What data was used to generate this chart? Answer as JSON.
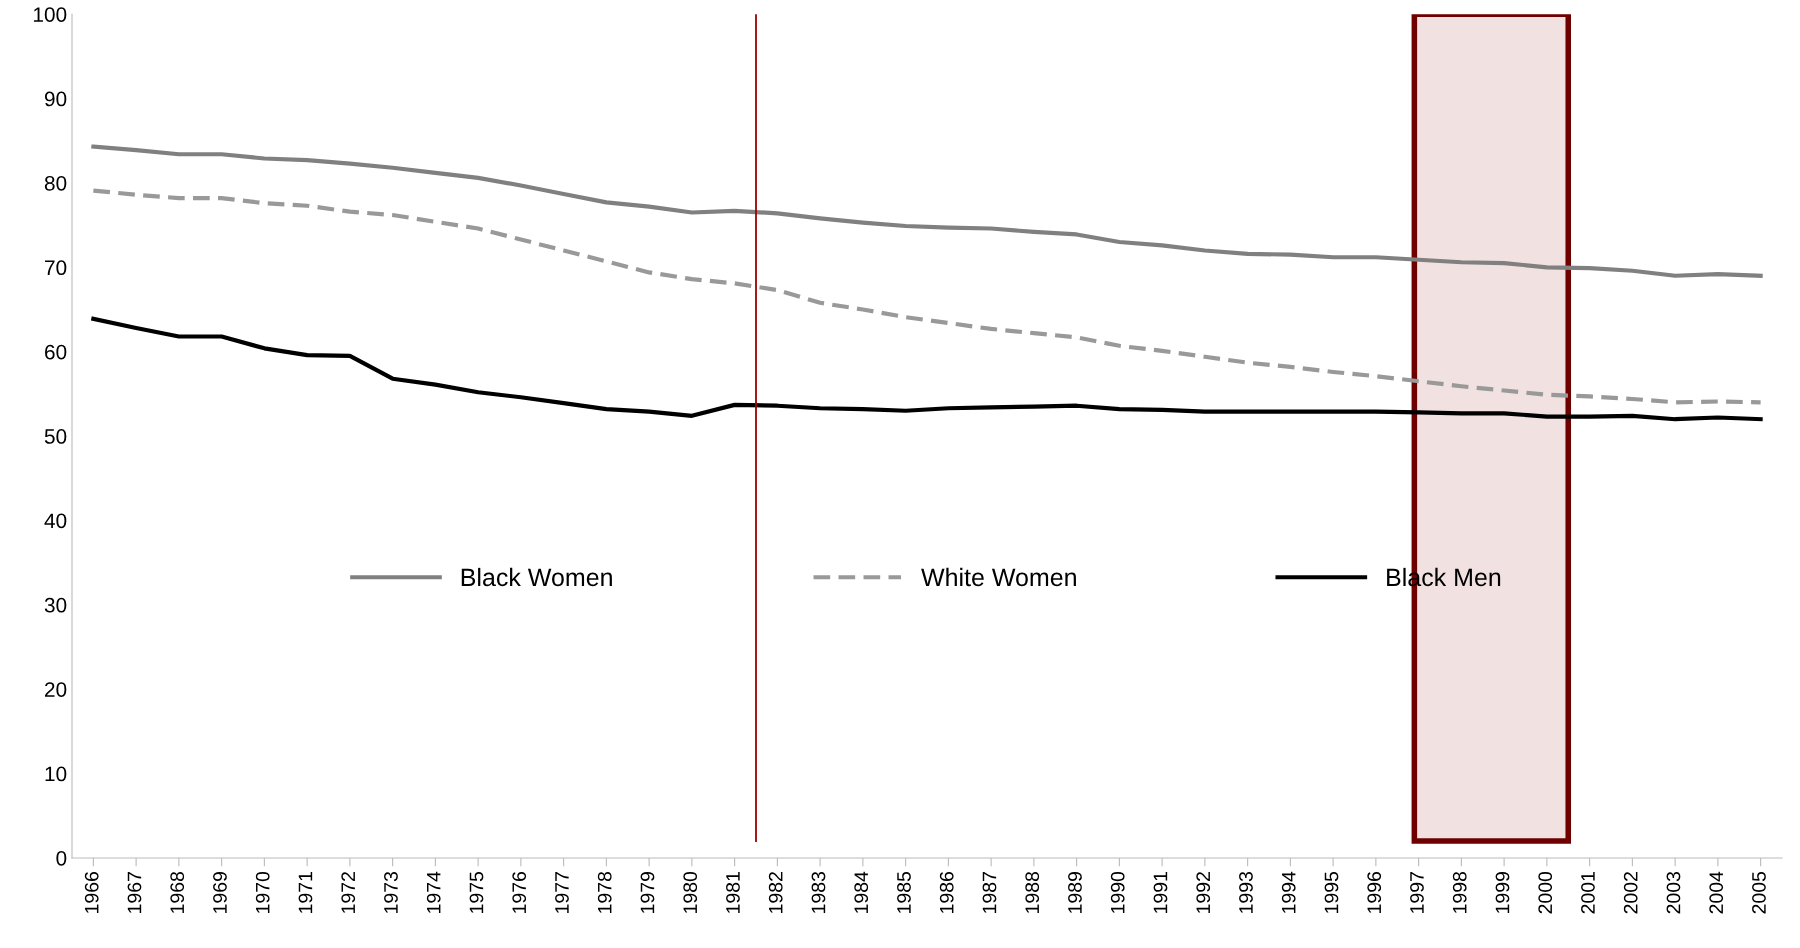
{
  "chart_data": {
    "type": "line",
    "x": [
      1966,
      1967,
      1968,
      1969,
      1970,
      1971,
      1972,
      1973,
      1974,
      1975,
      1976,
      1977,
      1978,
      1979,
      1980,
      1981,
      1982,
      1983,
      1984,
      1985,
      1986,
      1987,
      1988,
      1989,
      1990,
      1991,
      1992,
      1993,
      1994,
      1995,
      1996,
      1997,
      1998,
      1999,
      2000,
      2001,
      2002,
      2003,
      2004,
      2005
    ],
    "series": [
      {
        "name": "Black Women",
        "color": "#808080",
        "line_style": "solid",
        "values": [
          84.3,
          83.9,
          83.4,
          83.4,
          82.9,
          82.7,
          82.3,
          81.8,
          81.2,
          80.6,
          79.7,
          78.7,
          77.7,
          77.2,
          76.5,
          76.7,
          76.4,
          75.8,
          75.3,
          74.9,
          74.7,
          74.6,
          74.2,
          73.9,
          73.0,
          72.6,
          72.0,
          71.6,
          71.5,
          71.2,
          71.2,
          70.9,
          70.6,
          70.5,
          70.0,
          69.9,
          69.6,
          69.0,
          69.2,
          69.0
        ]
      },
      {
        "name": "White Women",
        "color": "#999999",
        "line_style": "dashed",
        "values": [
          79.1,
          78.6,
          78.2,
          78.2,
          77.6,
          77.3,
          76.6,
          76.2,
          75.4,
          74.6,
          73.3,
          72.0,
          70.7,
          69.4,
          68.6,
          68.1,
          67.3,
          65.8,
          65.0,
          64.1,
          63.4,
          62.7,
          62.2,
          61.7,
          60.7,
          60.1,
          59.4,
          58.7,
          58.2,
          57.6,
          57.1,
          56.5,
          55.9,
          55.4,
          54.9,
          54.7,
          54.4,
          54.0,
          54.1,
          54.0
        ]
      },
      {
        "name": "Black Men",
        "color": "#000000",
        "line_style": "solid",
        "values": [
          63.9,
          62.8,
          61.8,
          61.8,
          60.4,
          59.6,
          59.5,
          56.8,
          56.1,
          55.2,
          54.6,
          53.9,
          53.2,
          52.9,
          52.4,
          53.7,
          53.6,
          53.3,
          53.2,
          53.0,
          53.3,
          53.4,
          53.5,
          53.6,
          53.2,
          53.1,
          52.9,
          52.9,
          52.9,
          52.9,
          52.9,
          52.8,
          52.7,
          52.7,
          52.3,
          52.3,
          52.4,
          52.0,
          52.2,
          52.0
        ]
      }
    ],
    "xlim": [
      1965.5,
      2005.5
    ],
    "xticks": [
      1966,
      1967,
      1968,
      1969,
      1970,
      1971,
      1972,
      1973,
      1974,
      1975,
      1976,
      1977,
      1978,
      1979,
      1980,
      1981,
      1982,
      1983,
      1984,
      1985,
      1986,
      1987,
      1988,
      1989,
      1990,
      1991,
      1992,
      1993,
      1994,
      1995,
      1996,
      1997,
      1998,
      1999,
      2000,
      2001,
      2002,
      2003,
      2004,
      2005
    ],
    "ylim": [
      0,
      100
    ],
    "yticks": [
      0,
      10,
      20,
      30,
      40,
      50,
      60,
      70,
      80,
      90,
      100
    ],
    "grid": false,
    "legend": "center",
    "marker": "none",
    "ref_lines": [
      {
        "axis": "x",
        "value": 1981.5,
        "color": "#a00000"
      }
    ],
    "bands": [
      {
        "axis": "x",
        "from": 1996.9,
        "to": 2000.5,
        "color": "#f2e1e1"
      }
    ]
  }
}
